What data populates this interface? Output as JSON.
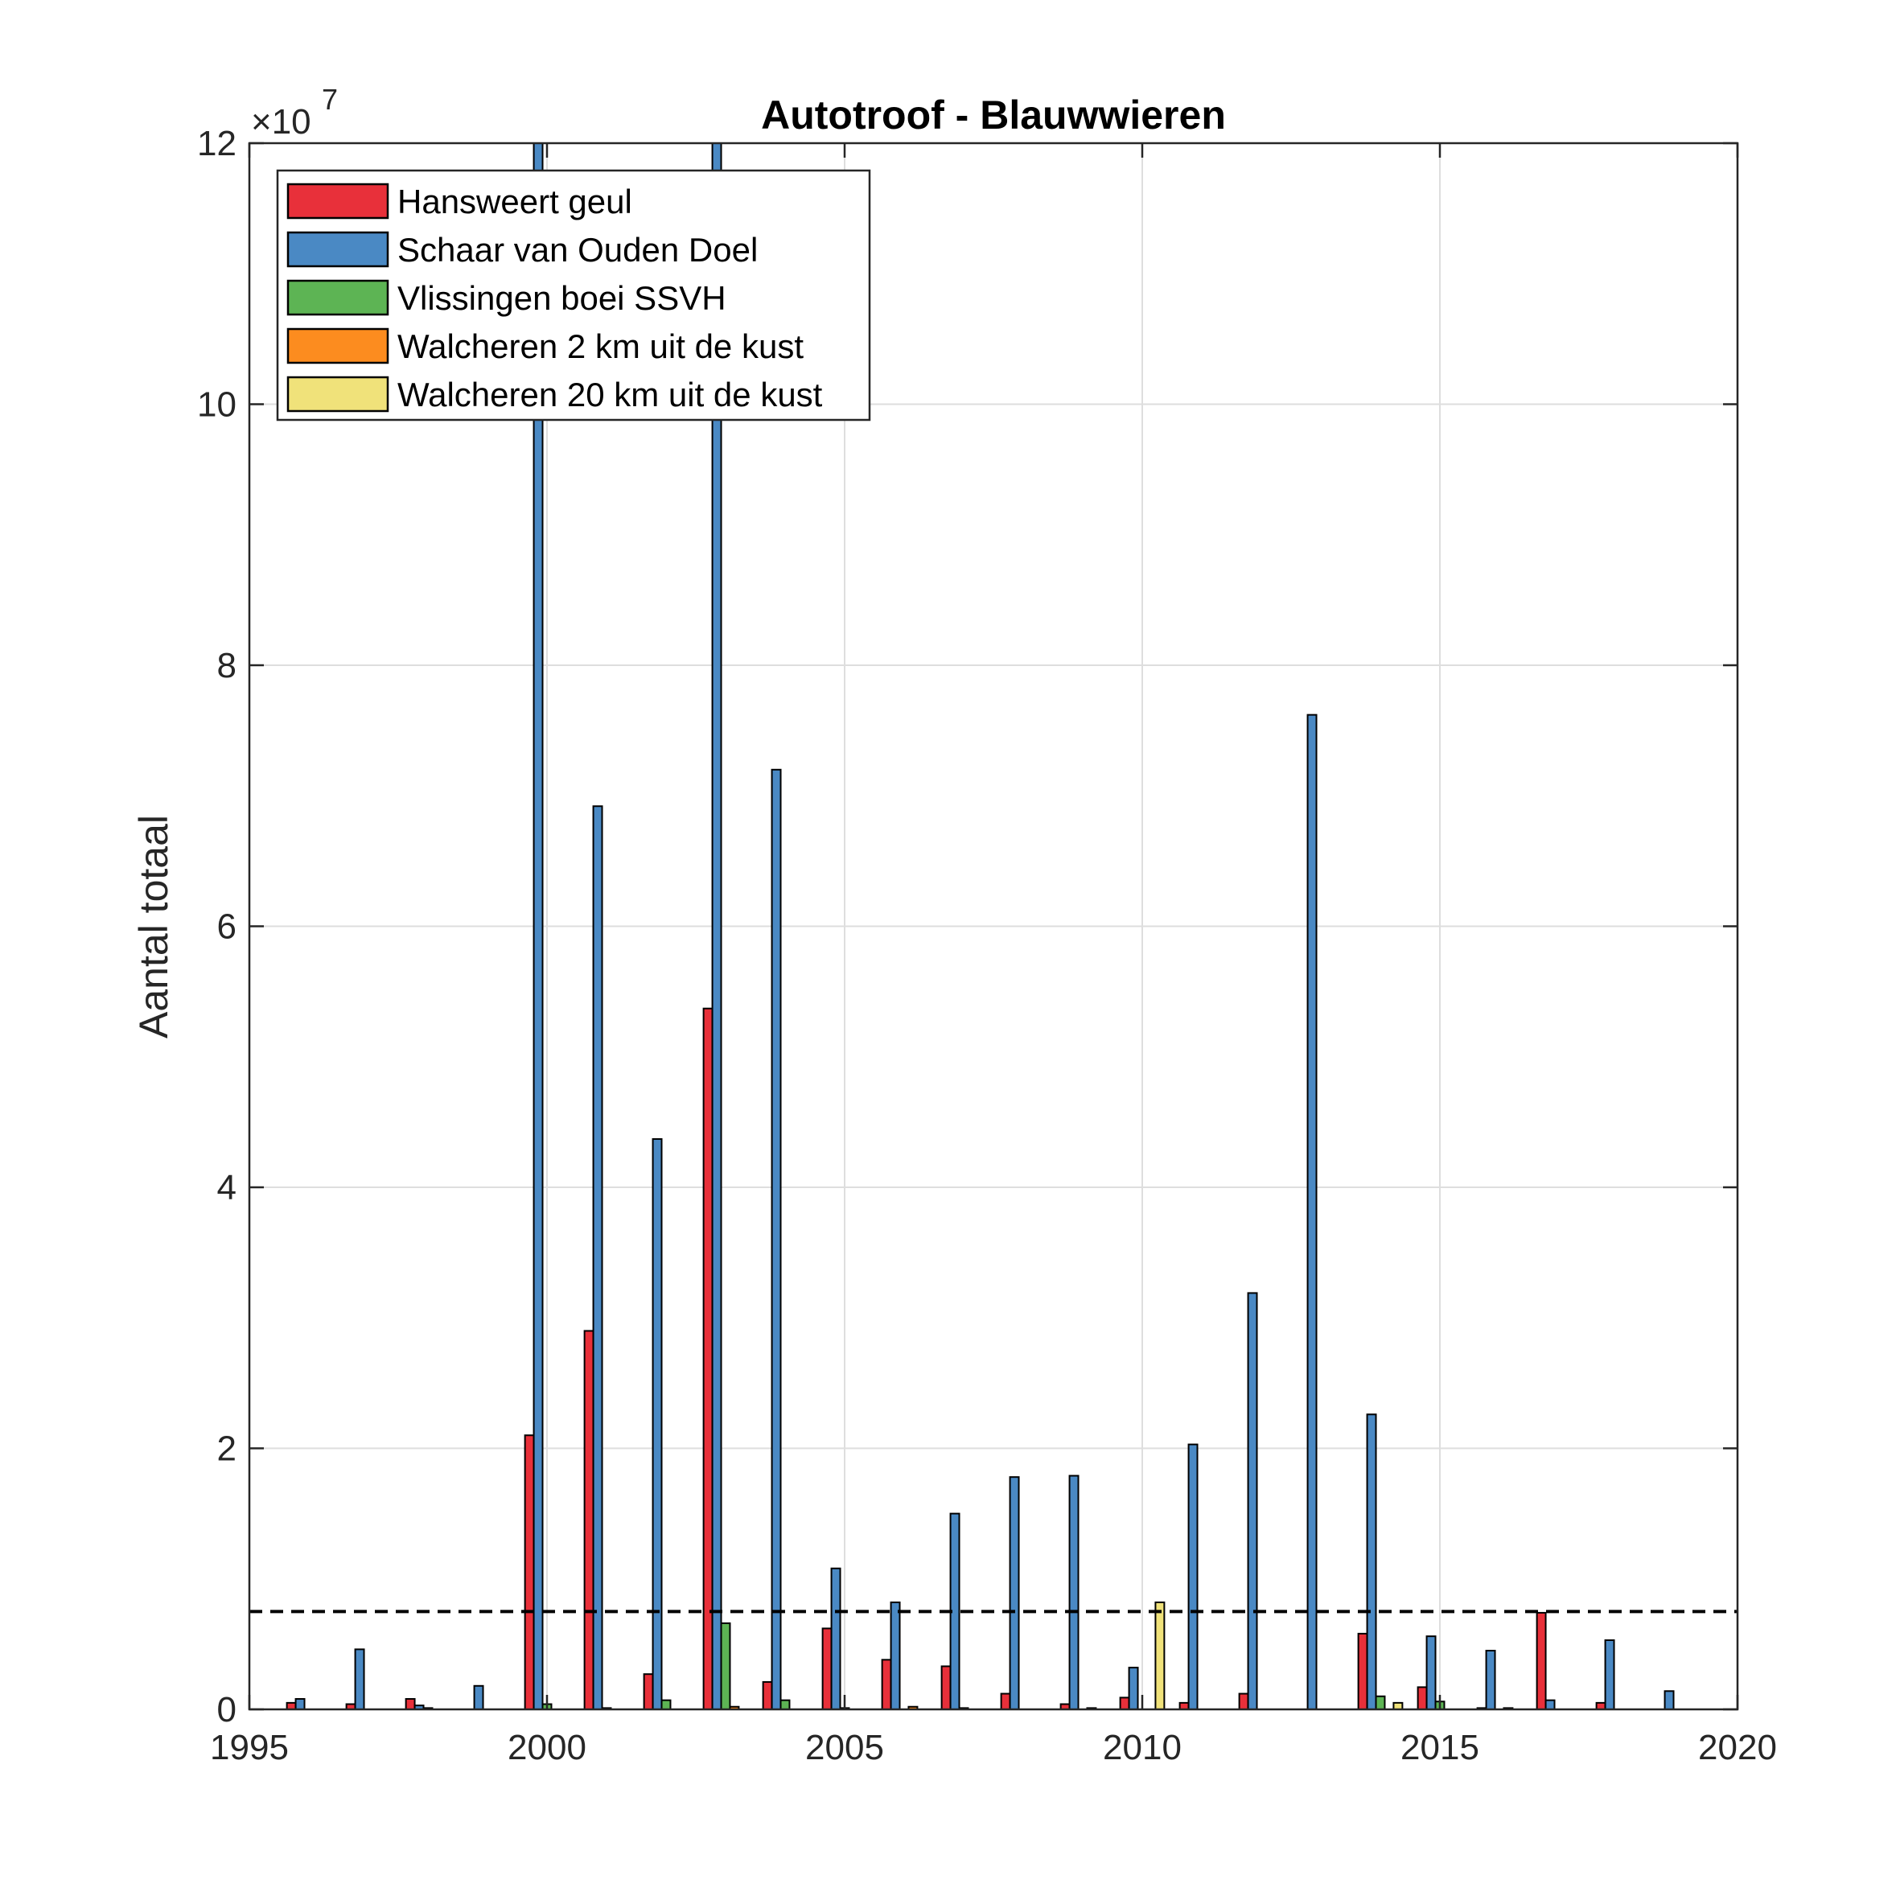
{
  "chart_data": {
    "type": "bar",
    "title": "Autotroof - Blauwwieren",
    "xlabel": "",
    "ylabel": "Aantal totaal",
    "y_exponent_base": "×10",
    "y_exponent_power": "7",
    "xlim": [
      1995,
      2020
    ],
    "ylim": [
      0,
      12
    ],
    "y_scale_factor": 10000000,
    "xticks": [
      1995,
      2000,
      2005,
      2010,
      2015,
      2020
    ],
    "yticks": [
      0,
      2,
      4,
      6,
      8,
      10,
      12
    ],
    "grid": true,
    "legend_position": "top-left",
    "threshold_line": 0.75,
    "categories": [
      1996,
      1997,
      1998,
      1999,
      2000,
      2001,
      2002,
      2003,
      2004,
      2005,
      2006,
      2007,
      2008,
      2009,
      2010,
      2011,
      2012,
      2013,
      2014,
      2015,
      2016,
      2017,
      2018,
      2019
    ],
    "series": [
      {
        "name": "Hansweert geul",
        "color": "#e8303a",
        "values": [
          0.05,
          0.04,
          0.08,
          0,
          2.1,
          2.9,
          0.27,
          5.37,
          0.21,
          0.62,
          0.38,
          0.33,
          0.12,
          0.04,
          0.09,
          0.05,
          0.12,
          0,
          0.58,
          0.17,
          0.01,
          0.74,
          0.05,
          0
        ]
      },
      {
        "name": "Schaar van Ouden Doel",
        "color": "#4a89c4",
        "values": [
          0.08,
          0.46,
          0.03,
          0.18,
          12,
          6.92,
          4.37,
          12,
          7.2,
          1.08,
          0.82,
          1.5,
          1.78,
          1.79,
          0.32,
          2.03,
          3.19,
          7.62,
          2.26,
          0.56,
          0.45,
          0.07,
          0.53,
          0.14
        ]
      },
      {
        "name": "Vlissingen boei SSVH",
        "color": "#5db454",
        "values": [
          0,
          0,
          0.01,
          0,
          0.04,
          0.01,
          0.07,
          0.66,
          0.07,
          0.01,
          0,
          0.01,
          0,
          0,
          0,
          0,
          0,
          0,
          0.1,
          0.06,
          0,
          0,
          0,
          0
        ]
      },
      {
        "name": "Walcheren 2 km uit de kust",
        "color": "#fc8c1f",
        "values": [
          0,
          0,
          0,
          0,
          0,
          0,
          0,
          0.02,
          0,
          0,
          0.02,
          0,
          0,
          0.01,
          0,
          0,
          0,
          0,
          0,
          0,
          0.01,
          0,
          0,
          0
        ]
      },
      {
        "name": "Walcheren 20 km uit de kust",
        "color": "#f0e27a",
        "values": [
          0,
          0,
          0,
          0,
          0,
          0,
          0,
          0,
          0,
          0,
          0,
          0,
          0,
          0,
          0.82,
          0,
          0,
          0,
          0.05,
          0,
          0,
          0,
          0,
          0
        ]
      }
    ]
  }
}
